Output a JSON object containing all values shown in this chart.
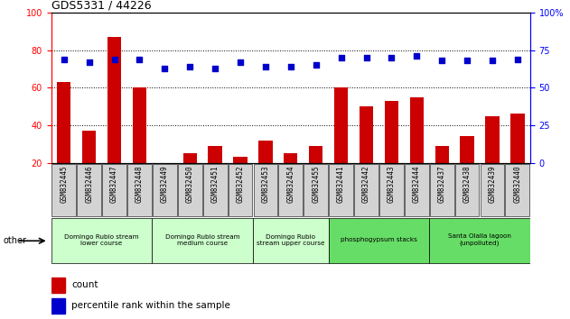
{
  "title": "GDS5331 / 44226",
  "samples": [
    "GSM832445",
    "GSM832446",
    "GSM832447",
    "GSM832448",
    "GSM832449",
    "GSM832450",
    "GSM832451",
    "GSM832452",
    "GSM832453",
    "GSM832454",
    "GSM832455",
    "GSM832441",
    "GSM832442",
    "GSM832443",
    "GSM832444",
    "GSM832437",
    "GSM832438",
    "GSM832439",
    "GSM832440"
  ],
  "counts": [
    63,
    37,
    87,
    60,
    20,
    25,
    29,
    23,
    32,
    25,
    29,
    60,
    50,
    53,
    55,
    29,
    34,
    45,
    46
  ],
  "percentiles": [
    69,
    67,
    69,
    69,
    63,
    64,
    63,
    67,
    64,
    64,
    65,
    70,
    70,
    70,
    71,
    68,
    68,
    68,
    69
  ],
  "groups": [
    {
      "label": "Domingo Rubio stream\nlower course",
      "start": 0,
      "end": 4,
      "color": "#ccffcc"
    },
    {
      "label": "Domingo Rubio stream\nmedium course",
      "start": 4,
      "end": 8,
      "color": "#ccffcc"
    },
    {
      "label": "Domingo Rubio\nstream upper course",
      "start": 8,
      "end": 11,
      "color": "#ccffcc"
    },
    {
      "label": "phosphogypsum stacks",
      "start": 11,
      "end": 15,
      "color": "#66dd66"
    },
    {
      "label": "Santa Olalla lagoon\n(unpolluted)",
      "start": 15,
      "end": 19,
      "color": "#66dd66"
    }
  ],
  "ylim_left": [
    20,
    100
  ],
  "ylim_right": [
    0,
    100
  ],
  "bar_color": "#cc0000",
  "dot_color": "#0000cc",
  "xtick_bg": "#d3d3d3",
  "plot_bg": "#ffffff"
}
